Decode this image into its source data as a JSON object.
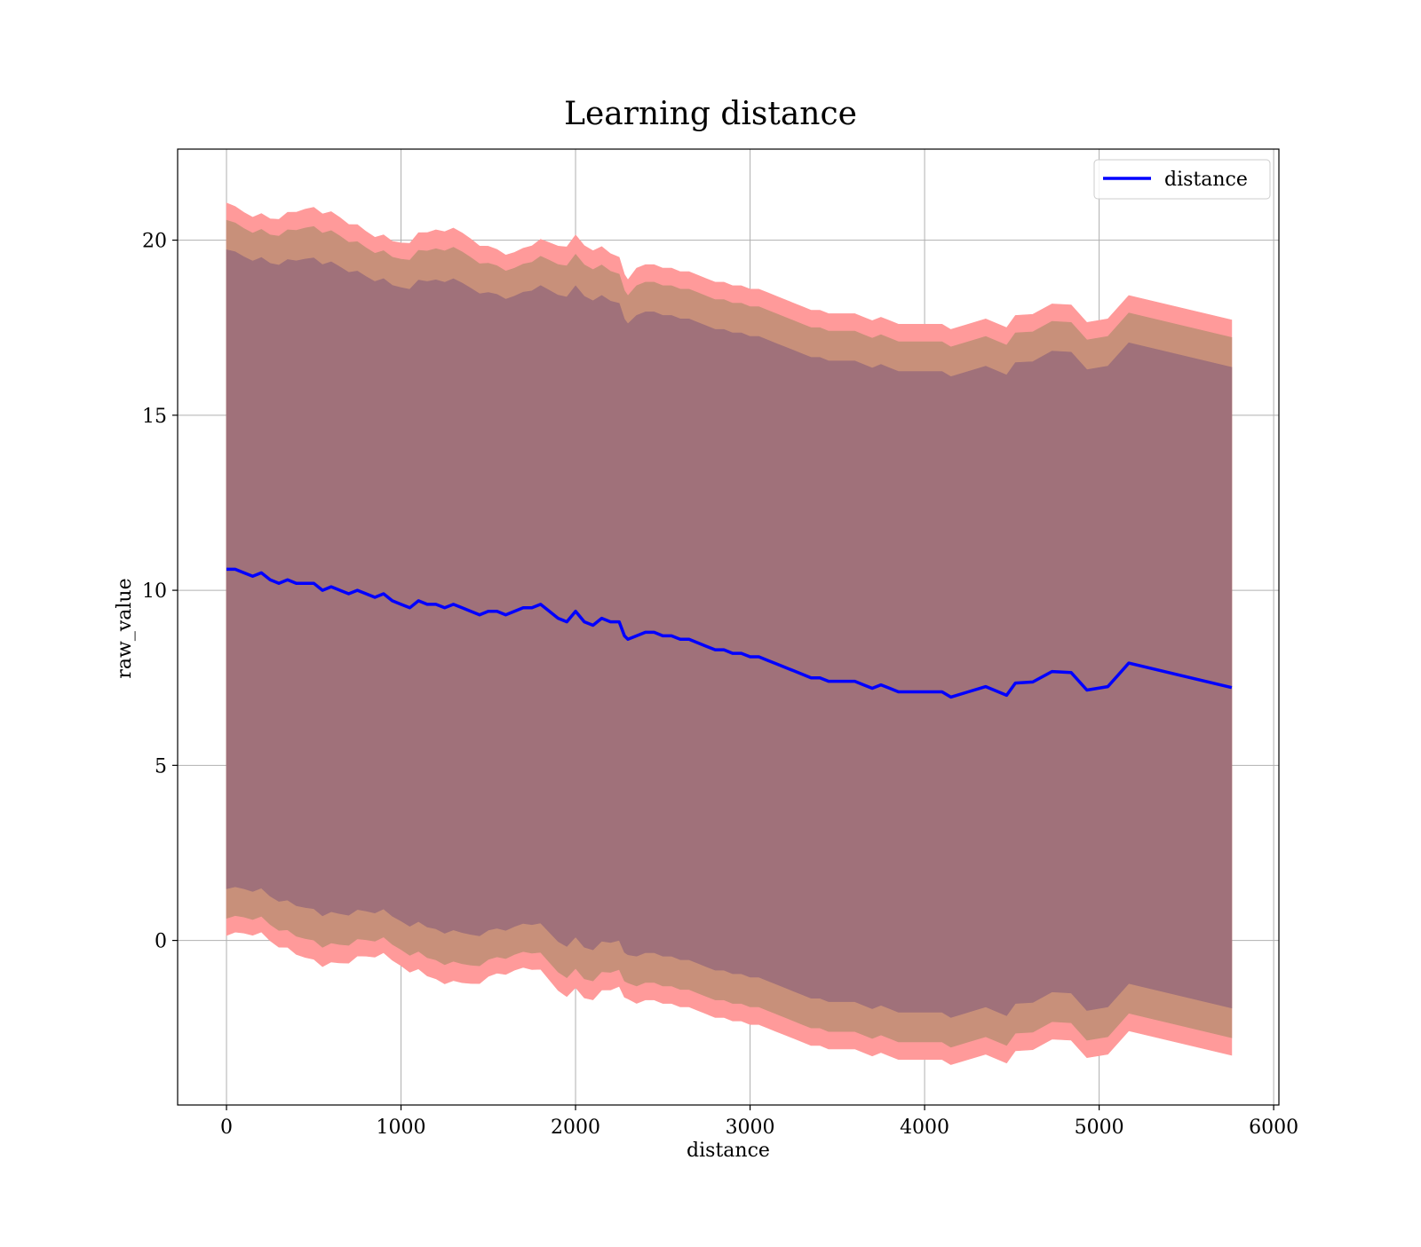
{
  "chart_data": {
    "type": "line",
    "title": "Learning distance",
    "xlabel": "distance",
    "ylabel": "raw_value",
    "xlim": [
      -280,
      6030
    ],
    "ylim": [
      -4.7,
      22.6
    ],
    "xticks": [
      0,
      1000,
      2000,
      3000,
      4000,
      5000,
      6000
    ],
    "yticks": [
      0,
      5,
      10,
      15,
      20
    ],
    "grid": true,
    "legend": {
      "position": "top-right",
      "entries": [
        "distance"
      ]
    },
    "colors": {
      "line": "#0000ff",
      "band_outer": "#ff9a9a",
      "band_middle": "#c8907a",
      "band_inner": "#a0717a"
    },
    "series": [
      {
        "name": "distance",
        "x": [
          0,
          50,
          100,
          150,
          200,
          250,
          300,
          350,
          400,
          450,
          500,
          550,
          600,
          650,
          700,
          750,
          800,
          850,
          900,
          950,
          1000,
          1050,
          1100,
          1150,
          1200,
          1250,
          1300,
          1350,
          1400,
          1450,
          1500,
          1550,
          1600,
          1650,
          1700,
          1750,
          1800,
          1850,
          1900,
          1950,
          2000,
          2050,
          2100,
          2150,
          2200,
          2250,
          2280,
          2300,
          2350,
          2400,
          2450,
          2500,
          2550,
          2600,
          2650,
          2700,
          2750,
          2800,
          2850,
          2900,
          2950,
          3000,
          3050,
          3100,
          3150,
          3200,
          3250,
          3300,
          3350,
          3400,
          3450,
          3500,
          3550,
          3600,
          3650,
          3700,
          3750,
          3800,
          3850,
          3900,
          3950,
          4000,
          4050,
          4100,
          4150,
          4250,
          4350,
          4470,
          4520,
          4620,
          4730,
          4840,
          4930,
          5050,
          5170,
          5760
        ],
        "y": [
          10.6,
          10.6,
          10.5,
          10.4,
          10.5,
          10.3,
          10.2,
          10.3,
          10.2,
          10.2,
          10.2,
          10.0,
          10.1,
          10.0,
          9.9,
          10.0,
          9.9,
          9.8,
          9.9,
          9.7,
          9.6,
          9.5,
          9.7,
          9.6,
          9.6,
          9.5,
          9.6,
          9.5,
          9.4,
          9.3,
          9.4,
          9.4,
          9.3,
          9.4,
          9.5,
          9.5,
          9.6,
          9.4,
          9.2,
          9.1,
          9.4,
          9.1,
          9.0,
          9.2,
          9.1,
          9.1,
          8.7,
          8.6,
          8.7,
          8.8,
          8.8,
          8.7,
          8.7,
          8.6,
          8.6,
          8.5,
          8.4,
          8.3,
          8.3,
          8.2,
          8.2,
          8.1,
          8.1,
          8.0,
          7.9,
          7.8,
          7.7,
          7.6,
          7.5,
          7.5,
          7.4,
          7.4,
          7.4,
          7.4,
          7.3,
          7.2,
          7.3,
          7.2,
          7.1,
          7.1,
          7.1,
          7.1,
          7.1,
          7.1,
          6.95,
          7.1,
          7.25,
          7.0,
          7.35,
          7.38,
          7.68,
          7.65,
          7.15,
          7.25,
          7.92,
          7.22
        ]
      }
    ]
  }
}
